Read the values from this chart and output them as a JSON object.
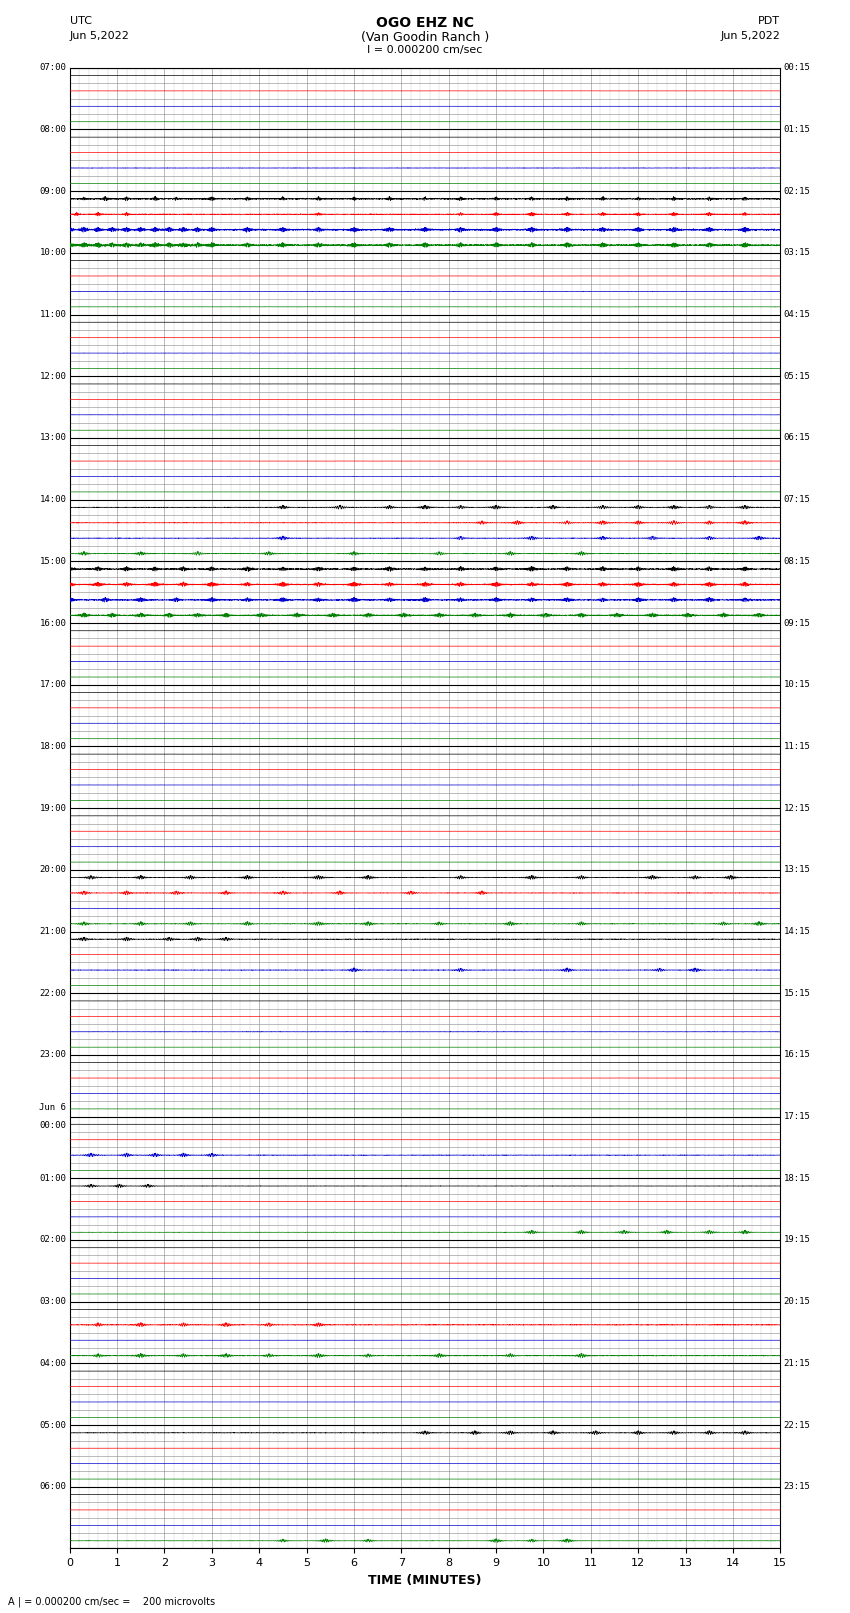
{
  "title_line1": "OGO EHZ NC",
  "title_line2": "(Van Goodin Ranch )",
  "title_line3": "I = 0.000200 cm/sec",
  "left_label_top": "UTC",
  "left_label_date": "Jun 5,2022",
  "right_label_top": "PDT",
  "right_label_date": "Jun 5,2022",
  "xlabel": "TIME (MINUTES)",
  "bottom_note": "A | = 0.000200 cm/sec =    200 microvolts",
  "background_color": "#ffffff",
  "major_grid_color": "#000000",
  "minor_grid_color": "#888888",
  "utc_labels": [
    "07:00",
    "08:00",
    "09:00",
    "10:00",
    "11:00",
    "12:00",
    "13:00",
    "14:00",
    "15:00",
    "16:00",
    "17:00",
    "18:00",
    "19:00",
    "20:00",
    "21:00",
    "22:00",
    "23:00",
    "Jun 6\n00:00",
    "01:00",
    "02:00",
    "03:00",
    "04:00",
    "05:00",
    "06:00"
  ],
  "pdt_labels": [
    "00:15",
    "01:15",
    "02:15",
    "03:15",
    "04:15",
    "05:15",
    "06:15",
    "07:15",
    "08:15",
    "09:15",
    "10:15",
    "11:15",
    "12:15",
    "13:15",
    "14:15",
    "15:15",
    "16:15",
    "17:15",
    "18:15",
    "19:15",
    "20:15",
    "21:15",
    "22:15",
    "23:15"
  ],
  "n_hours": 24,
  "traces_per_hour": 4,
  "x_min": 0,
  "x_max": 15,
  "x_ticks": [
    0,
    1,
    2,
    3,
    4,
    5,
    6,
    7,
    8,
    9,
    10,
    11,
    12,
    13,
    14,
    15
  ],
  "figsize": [
    8.5,
    16.13
  ],
  "dpi": 100
}
